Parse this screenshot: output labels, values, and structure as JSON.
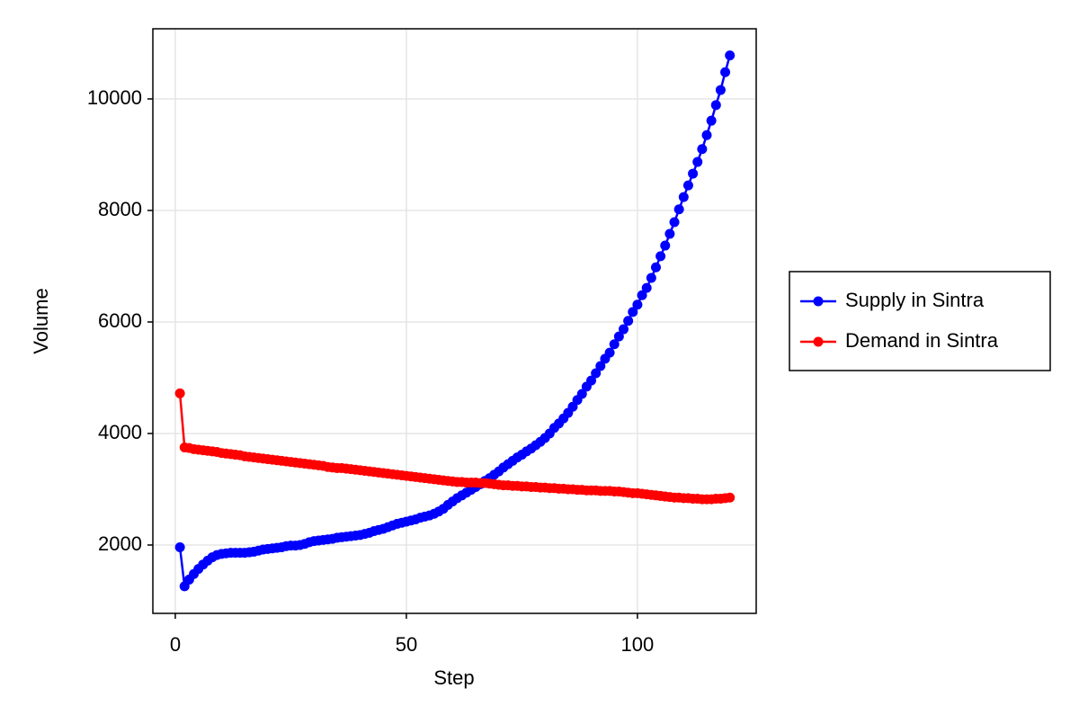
{
  "chart_data": {
    "type": "line",
    "x_label": "Step",
    "y_label": "Volume",
    "x": [
      1,
      2,
      3,
      4,
      5,
      6,
      7,
      8,
      9,
      10,
      11,
      12,
      13,
      14,
      15,
      16,
      17,
      18,
      19,
      20,
      21,
      22,
      23,
      24,
      25,
      26,
      27,
      28,
      29,
      30,
      31,
      32,
      33,
      34,
      35,
      36,
      37,
      38,
      39,
      40,
      41,
      42,
      43,
      44,
      45,
      46,
      47,
      48,
      49,
      50,
      51,
      52,
      53,
      54,
      55,
      56,
      57,
      58,
      59,
      60,
      61,
      62,
      63,
      64,
      65,
      66,
      67,
      68,
      69,
      70,
      71,
      72,
      73,
      74,
      75,
      76,
      77,
      78,
      79,
      80,
      81,
      82,
      83,
      84,
      85,
      86,
      87,
      88,
      89,
      90,
      91,
      92,
      93,
      94,
      95,
      96,
      97,
      98,
      99,
      100,
      101,
      102,
      103,
      104,
      105,
      106,
      107,
      108,
      109,
      110,
      111,
      112,
      113,
      114,
      115,
      116,
      117,
      118,
      119,
      120
    ],
    "series": [
      {
        "name": "Supply in Sintra",
        "color": "#0000ff",
        "values": [
          1960,
          1260,
          1380,
          1480,
          1570,
          1650,
          1720,
          1780,
          1820,
          1840,
          1850,
          1860,
          1860,
          1860,
          1860,
          1870,
          1880,
          1900,
          1920,
          1930,
          1940,
          1950,
          1960,
          1980,
          1990,
          1990,
          2000,
          2020,
          2050,
          2070,
          2080,
          2090,
          2100,
          2110,
          2130,
          2140,
          2150,
          2160,
          2170,
          2180,
          2200,
          2220,
          2250,
          2270,
          2290,
          2320,
          2350,
          2380,
          2400,
          2420,
          2440,
          2460,
          2490,
          2510,
          2530,
          2560,
          2600,
          2650,
          2720,
          2780,
          2840,
          2890,
          2940,
          2990,
          3040,
          3090,
          3150,
          3200,
          3260,
          3320,
          3390,
          3450,
          3510,
          3570,
          3620,
          3680,
          3730,
          3790,
          3850,
          3920,
          4000,
          4100,
          4180,
          4270,
          4370,
          4480,
          4600,
          4710,
          4840,
          4950,
          5080,
          5210,
          5340,
          5450,
          5600,
          5740,
          5870,
          6020,
          6180,
          6310,
          6480,
          6610,
          6790,
          6980,
          7180,
          7370,
          7580,
          7790,
          8020,
          8240,
          8450,
          8660,
          8870,
          9100,
          9350,
          9610,
          9890,
          10160,
          10480,
          10780
        ]
      },
      {
        "name": "Demand in Sintra",
        "color": "#ff0000",
        "values": [
          4720,
          3750,
          3740,
          3720,
          3710,
          3700,
          3690,
          3680,
          3670,
          3650,
          3640,
          3630,
          3620,
          3610,
          3590,
          3580,
          3570,
          3560,
          3550,
          3540,
          3530,
          3520,
          3510,
          3500,
          3490,
          3480,
          3470,
          3460,
          3450,
          3440,
          3430,
          3420,
          3400,
          3390,
          3380,
          3380,
          3370,
          3360,
          3350,
          3340,
          3330,
          3320,
          3310,
          3300,
          3290,
          3280,
          3270,
          3260,
          3250,
          3240,
          3230,
          3220,
          3210,
          3200,
          3190,
          3180,
          3170,
          3160,
          3150,
          3140,
          3130,
          3130,
          3120,
          3120,
          3120,
          3110,
          3110,
          3100,
          3090,
          3080,
          3070,
          3070,
          3060,
          3060,
          3050,
          3050,
          3040,
          3040,
          3030,
          3030,
          3020,
          3020,
          3010,
          3010,
          3000,
          3000,
          2990,
          2990,
          2980,
          2980,
          2980,
          2970,
          2970,
          2970,
          2960,
          2960,
          2950,
          2940,
          2930,
          2930,
          2920,
          2910,
          2900,
          2890,
          2880,
          2870,
          2860,
          2850,
          2850,
          2840,
          2840,
          2830,
          2830,
          2820,
          2820,
          2820,
          2830,
          2830,
          2840,
          2850
        ]
      }
    ],
    "xlim": [
      -4.86,
      125.7
    ],
    "xticks": [
      0,
      50,
      100
    ],
    "ylim": [
      774,
      11258
    ],
    "yticks": [
      2000,
      4000,
      6000,
      8000,
      10000
    ],
    "grid": true,
    "legend": "right",
    "markers": true
  }
}
